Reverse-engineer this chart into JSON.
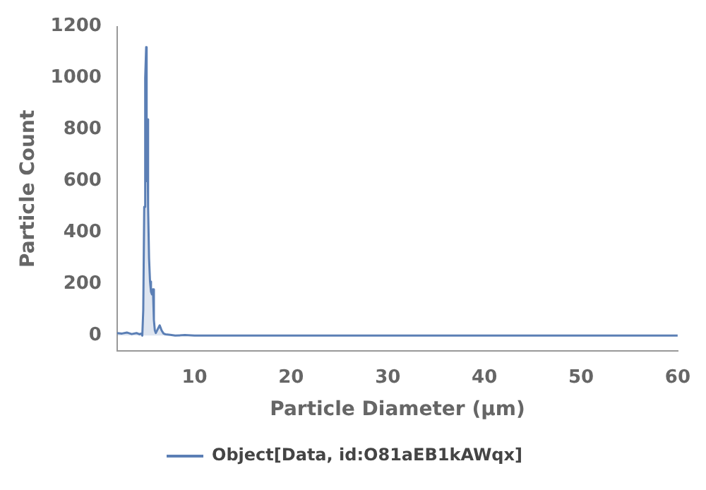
{
  "chart_data": {
    "type": "area",
    "xlabel": "Particle Diameter (μm)",
    "ylabel": "Particle Count",
    "xlim": [
      2,
      60
    ],
    "xticks": [
      10,
      20,
      30,
      40,
      50,
      60
    ],
    "ylim": [
      -60,
      1200
    ],
    "yticks": [
      0,
      200,
      400,
      600,
      800,
      1000,
      1200
    ],
    "grid": false,
    "legend": "bottom",
    "marker": "none",
    "series": [
      {
        "name": "Object[Data, id:O81aEB1kAWqx]",
        "color": "#5b7fb5",
        "x": [
          2,
          2.5,
          3,
          3.5,
          4,
          4.3,
          4.5,
          4.6,
          4.7,
          4.8,
          4.9,
          5,
          5.05,
          5.1,
          5.2,
          5.3,
          5.4,
          5.5,
          5.6,
          5.7,
          5.8,
          5.9,
          6,
          6.2,
          6.4,
          6.6,
          6.8,
          7,
          7.5,
          8,
          9,
          10,
          15,
          20,
          30,
          40,
          50,
          60
        ],
        "values": [
          10,
          8,
          12,
          6,
          10,
          5,
          8,
          0,
          100,
          500,
          1000,
          1120,
          600,
          840,
          500,
          300,
          210,
          170,
          160,
          180,
          60,
          20,
          10,
          25,
          40,
          20,
          8,
          5,
          3,
          0,
          2,
          0,
          0,
          0,
          0,
          0,
          0,
          0
        ]
      }
    ]
  }
}
